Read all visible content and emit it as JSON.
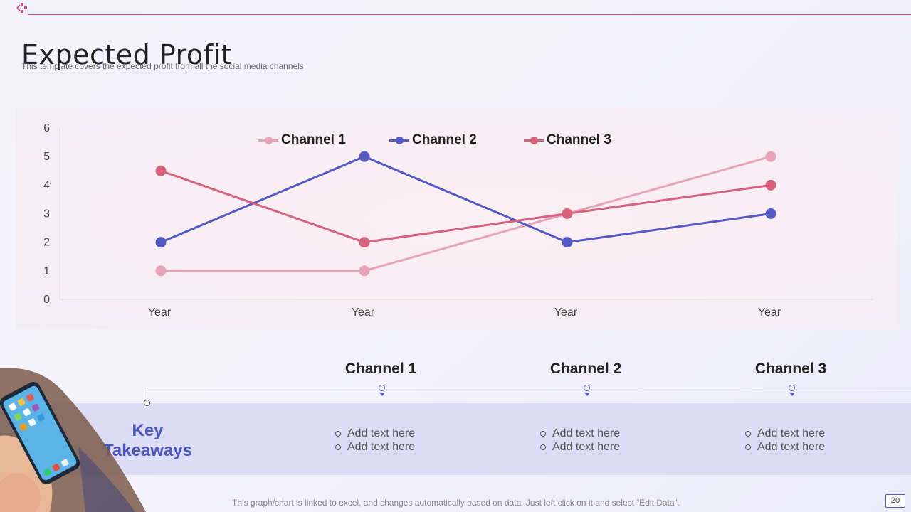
{
  "header": {
    "title": "Expected Profit",
    "subtitle": "This template covers the expected profit from all the social media channels"
  },
  "chart_data": {
    "type": "line",
    "categories": [
      "Year",
      "Year",
      "Year",
      "Year"
    ],
    "series": [
      {
        "name": "Channel 1",
        "color": "#e9a3b8",
        "values": [
          1,
          1,
          3,
          5
        ]
      },
      {
        "name": "Channel 2",
        "color": "#5459c8",
        "values": [
          2,
          5,
          2,
          3
        ]
      },
      {
        "name": "Channel 3",
        "color": "#d8627e",
        "values": [
          4.5,
          2,
          3,
          4
        ]
      }
    ],
    "ylim": [
      0,
      6
    ],
    "yticks": [
      "0",
      "1",
      "2",
      "3",
      "4",
      "5",
      "6"
    ],
    "legend": "top",
    "grid": false
  },
  "takeaways": {
    "title_line1": "Key",
    "title_line2": "Takeaways",
    "columns": [
      {
        "heading": "Channel 1",
        "bullets": [
          "Add text here",
          "Add text here"
        ]
      },
      {
        "heading": "Channel 2",
        "bullets": [
          "Add text here",
          "Add text here"
        ]
      },
      {
        "heading": "Channel 3",
        "bullets": [
          "Add text here",
          "Add text here"
        ]
      }
    ]
  },
  "footer": {
    "note": "This graph/chart is linked to excel,  and changes automatically based on data. Just left click on it and select “Edit Data”.",
    "page_number": "20"
  },
  "colors": {
    "accent_blue": "#4a56c6",
    "accent_pink": "#d24a8e"
  },
  "icons": {
    "logo": "brand-logo-icon",
    "phone": "hand-holding-phone-illustration"
  }
}
